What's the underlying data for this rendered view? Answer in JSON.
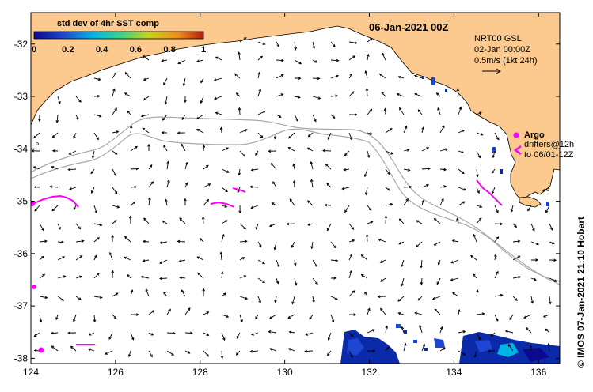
{
  "map": {
    "title": "06-Jan-2021 00Z",
    "lon_range": [
      124,
      136.5
    ],
    "lat_range": [
      -38.1,
      -31.4
    ],
    "lon_ticks": [
      124,
      126,
      128,
      130,
      132,
      134,
      136
    ],
    "lat_ticks": [
      -32,
      -33,
      -34,
      -35,
      -36,
      -37,
      -38
    ],
    "lon_tick_labels": [
      "124",
      "126",
      "128",
      "130",
      "132",
      "134",
      "136"
    ],
    "lat_tick_labels": [
      "-32",
      "-33",
      "-34",
      "-35",
      "-36",
      "-37",
      "-38"
    ],
    "land_color": "#fcc98f",
    "ocean_color": "#ffffff",
    "bathy_color": "#a8a8a8",
    "argo_color": "#ff00ff"
  },
  "colorbar": {
    "title": "std dev of 4hr SST comp",
    "tick_labels": [
      "0",
      "0.2",
      "0.4",
      "0.6",
      "0.8",
      "1"
    ],
    "colors": [
      "#0a0a8c",
      "#1e46d2",
      "#00b4e6",
      "#32d28c",
      "#c8d214",
      "#f08c14",
      "#b41e0a"
    ]
  },
  "legend": {
    "line1": "NRT00 GSL",
    "line2": "02-Jan 00:00Z",
    "line3": "0.5m/s (1kt 24h)",
    "argo_label": "Argo",
    "drifters_line1": "drifters@12h",
    "drifters_line2": "to 06/01-12Z"
  },
  "side_text": "© IMOS 07-Jan-2021 21:10 Hobart"
}
